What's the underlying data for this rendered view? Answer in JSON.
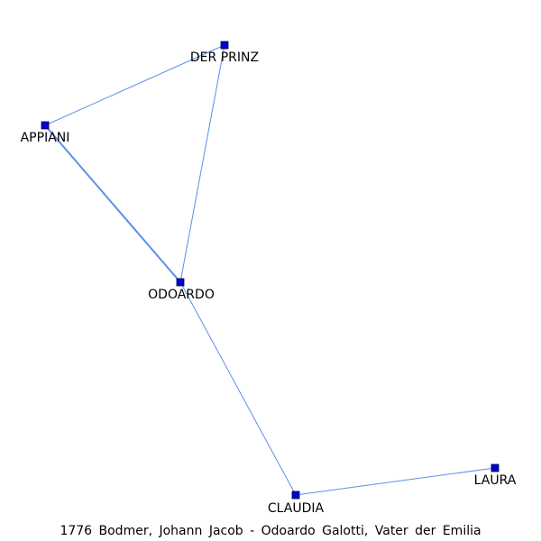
{
  "caption": "1776 Bodmer, Johann Jacob - Odoardo Galotti, Vater der Emilia",
  "colors": {
    "node": "#0000dd",
    "edge": "#5b8fe8"
  },
  "nodes": [
    {
      "id": "prinz",
      "label": "DER PRINZ"
    },
    {
      "id": "appiani",
      "label": "APPIANI"
    },
    {
      "id": "odoardo",
      "label": "ODOARDO"
    },
    {
      "id": "claudia",
      "label": "CLAUDIA"
    },
    {
      "id": "laura",
      "label": "LAURA"
    }
  ],
  "edges": [
    {
      "source": "appiani",
      "target": "prinz",
      "weight": 1
    },
    {
      "source": "prinz",
      "target": "odoardo",
      "weight": 1
    },
    {
      "source": "appiani",
      "target": "odoardo",
      "weight": 2
    },
    {
      "source": "odoardo",
      "target": "claudia",
      "weight": 1
    },
    {
      "source": "claudia",
      "target": "laura",
      "weight": 1
    }
  ]
}
